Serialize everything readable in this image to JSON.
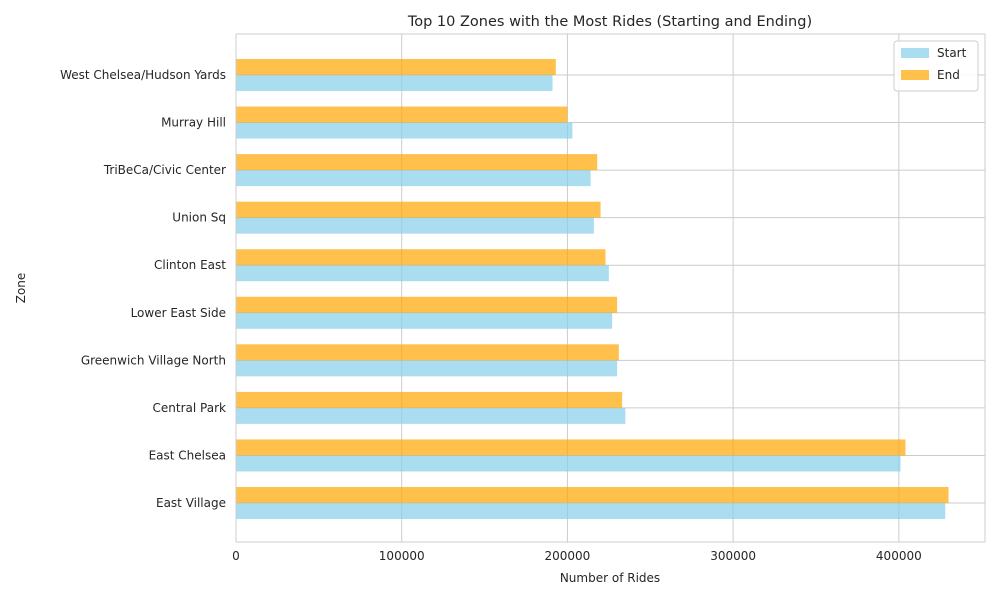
{
  "chart_data": {
    "type": "bar",
    "orientation": "horizontal",
    "title": "Top 10 Zones with the Most Rides (Starting and Ending)",
    "xlabel": "Number of Rides",
    "ylabel": "Zone",
    "xlim": [
      0,
      452000
    ],
    "xticks": [
      0,
      100000,
      200000,
      300000,
      400000
    ],
    "xtick_labels": [
      "0",
      "100000",
      "200000",
      "300000",
      "400000"
    ],
    "grid": true,
    "legend_position": "top-right",
    "categories": [
      "East Village",
      "East Chelsea",
      "Central Park",
      "Greenwich Village North",
      "Lower East Side",
      "Clinton East",
      "Union Sq",
      "TriBeCa/Civic Center",
      "Murray Hill",
      "West Chelsea/Hudson Yards"
    ],
    "series": [
      {
        "name": "Start",
        "color": "#87CEEB",
        "values": [
          428000,
          401000,
          235000,
          230000,
          227000,
          225000,
          216000,
          214000,
          203000,
          191000
        ]
      },
      {
        "name": "End",
        "color": "#FFA500",
        "values": [
          430000,
          404000,
          233000,
          231000,
          230000,
          223000,
          220000,
          218000,
          200000,
          193000
        ]
      }
    ]
  }
}
